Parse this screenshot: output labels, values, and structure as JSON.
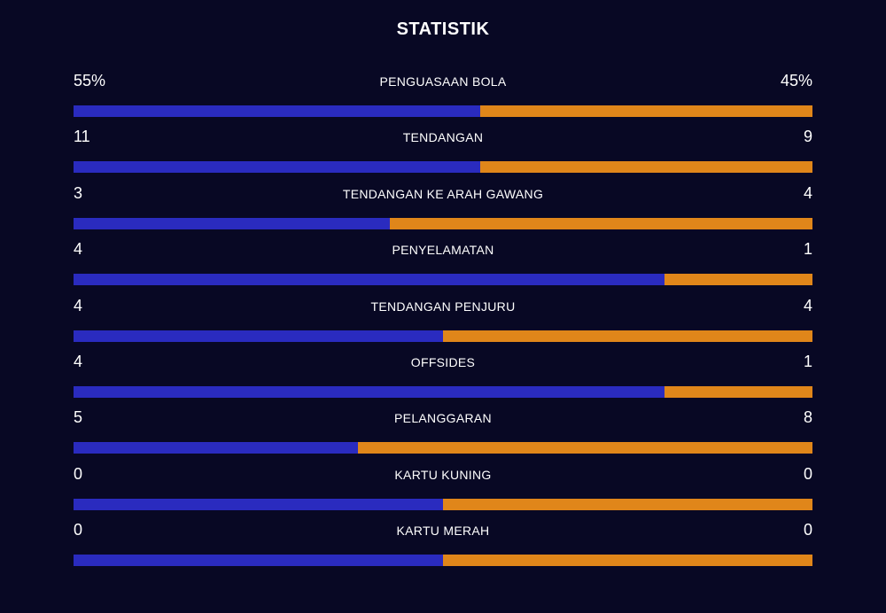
{
  "title": "STATISTIK",
  "colors": {
    "background": "#080824",
    "home": "#2a2bbf",
    "away": "#e0861a"
  },
  "stats": [
    {
      "label": "PENGUASAAN BOLA",
      "left": "55%",
      "right": "45%",
      "left_share": 0.55
    },
    {
      "label": "TENDANGAN",
      "left": "11",
      "right": "9",
      "left_share": 0.55
    },
    {
      "label": "TENDANGAN KE ARAH GAWANG",
      "left": "3",
      "right": "4",
      "left_share": 0.4286
    },
    {
      "label": "PENYELAMATAN",
      "left": "4",
      "right": "1",
      "left_share": 0.8
    },
    {
      "label": "TENDANGAN PENJURU",
      "left": "4",
      "right": "4",
      "left_share": 0.5
    },
    {
      "label": "OFFSIDES",
      "left": "4",
      "right": "1",
      "left_share": 0.8
    },
    {
      "label": "PELANGGARAN",
      "left": "5",
      "right": "8",
      "left_share": 0.3846
    },
    {
      "label": "KARTU KUNING",
      "left": "0",
      "right": "0",
      "left_share": 0.5
    },
    {
      "label": "KARTU MERAH",
      "left": "0",
      "right": "0",
      "left_share": 0.5
    }
  ]
}
